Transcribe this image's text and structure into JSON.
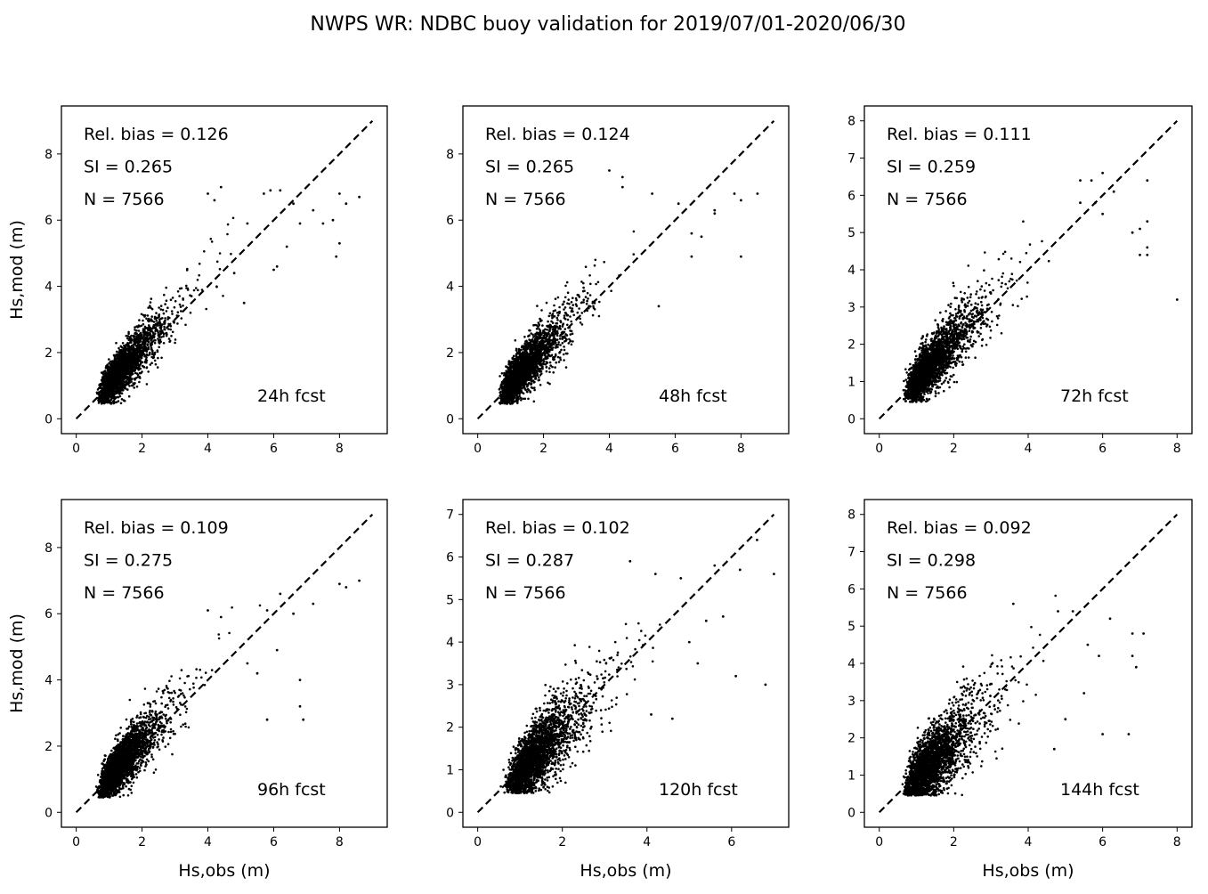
{
  "figure": {
    "title": "NWPS WR: NDBC buoy validation for 2019/07/01-2020/06/30",
    "marker_color": "#000000",
    "line_color": "#000000",
    "background": "#ffffff"
  },
  "chart_data": [
    {
      "type": "scatter",
      "label": "24h fcst",
      "xlabel": "",
      "ylabel": "Hs,mod (m)",
      "xlim": [
        -0.45,
        9.45
      ],
      "ylim": [
        -0.45,
        9.45
      ],
      "xticks": [
        0,
        2,
        4,
        6,
        8
      ],
      "yticks": [
        0,
        2,
        4,
        6,
        8
      ],
      "reference_line": {
        "style": "dashed",
        "from": [
          0,
          0
        ],
        "to": [
          9,
          9
        ]
      },
      "stats": {
        "rel_bias": "Rel. bias =  0.126",
        "si": "SI =  0.265",
        "n": "N = 7566"
      },
      "n_points": 7566,
      "cloud": {
        "x_mode": 1.2,
        "x_max": 4.8,
        "slope": 1.1,
        "spread": 0.28
      },
      "outliers": [
        [
          4.0,
          6.8
        ],
        [
          4.4,
          7.0
        ],
        [
          4.2,
          6.6
        ],
        [
          5.2,
          5.9
        ],
        [
          5.7,
          6.8
        ],
        [
          5.9,
          6.9
        ],
        [
          6.2,
          6.9
        ],
        [
          6.6,
          6.5
        ],
        [
          6.8,
          5.9
        ],
        [
          7.2,
          6.3
        ],
        [
          7.5,
          5.9
        ],
        [
          7.8,
          6.0
        ],
        [
          7.9,
          4.9
        ],
        [
          8.0,
          5.3
        ],
        [
          8.0,
          6.8
        ],
        [
          8.6,
          6.7
        ],
        [
          8.2,
          6.5
        ],
        [
          6.1,
          4.6
        ],
        [
          6.4,
          5.2
        ],
        [
          6.0,
          4.5
        ],
        [
          5.1,
          3.5
        ],
        [
          4.8,
          4.4
        ]
      ]
    },
    {
      "type": "scatter",
      "label": "48h fcst",
      "xlabel": "",
      "ylabel": "",
      "xlim": [
        -0.45,
        9.45
      ],
      "ylim": [
        -0.45,
        9.45
      ],
      "xticks": [
        0,
        2,
        4,
        6,
        8
      ],
      "yticks": [
        0,
        2,
        4,
        6,
        8
      ],
      "reference_line": {
        "style": "dashed",
        "from": [
          0,
          0
        ],
        "to": [
          9,
          9
        ]
      },
      "stats": {
        "rel_bias": "Rel. bias =  0.124",
        "si": "SI =  0.265",
        "n": "N = 7566"
      },
      "n_points": 7566,
      "cloud": {
        "x_mode": 1.2,
        "x_max": 4.8,
        "slope": 1.1,
        "spread": 0.29
      },
      "outliers": [
        [
          4.0,
          7.5
        ],
        [
          4.4,
          7.3
        ],
        [
          4.4,
          7.0
        ],
        [
          5.3,
          6.8
        ],
        [
          6.1,
          6.5
        ],
        [
          6.5,
          5.6
        ],
        [
          7.2,
          6.2
        ],
        [
          7.2,
          6.3
        ],
        [
          7.8,
          6.8
        ],
        [
          8.5,
          6.8
        ],
        [
          8.0,
          6.6
        ],
        [
          8.0,
          4.9
        ],
        [
          6.5,
          4.9
        ],
        [
          5.5,
          3.4
        ],
        [
          6.8,
          5.5
        ]
      ]
    },
    {
      "type": "scatter",
      "label": "72h fcst",
      "xlabel": "",
      "ylabel": "",
      "xlim": [
        -0.4,
        8.4
      ],
      "ylim": [
        -0.4,
        8.4
      ],
      "xticks": [
        0,
        2,
        4,
        6,
        8
      ],
      "yticks": [
        0,
        1,
        2,
        3,
        4,
        5,
        6,
        7,
        8
      ],
      "reference_line": {
        "style": "dashed",
        "from": [
          0,
          0
        ],
        "to": [
          8,
          8
        ]
      },
      "stats": {
        "rel_bias": "Rel. bias =  0.111",
        "si": "SI =  0.259",
        "n": "N = 7566"
      },
      "n_points": 7566,
      "cloud": {
        "x_mode": 1.2,
        "x_max": 4.8,
        "slope": 1.07,
        "spread": 0.3
      },
      "outliers": [
        [
          5.4,
          6.4
        ],
        [
          5.7,
          6.4
        ],
        [
          6.0,
          6.6
        ],
        [
          5.4,
          5.8
        ],
        [
          6.3,
          6.1
        ],
        [
          7.2,
          6.4
        ],
        [
          7.0,
          5.1
        ],
        [
          7.2,
          5.3
        ],
        [
          7.2,
          4.6
        ],
        [
          7.2,
          4.4
        ],
        [
          8.0,
          3.2
        ],
        [
          6.8,
          5.0
        ],
        [
          7.0,
          4.4
        ],
        [
          6.0,
          5.5
        ],
        [
          5.8,
          5.8
        ]
      ]
    },
    {
      "type": "scatter",
      "label": "96h fcst",
      "xlabel": "Hs,obs (m)",
      "ylabel": "Hs,mod (m)",
      "xlim": [
        -0.45,
        9.45
      ],
      "ylim": [
        -0.45,
        9.45
      ],
      "xticks": [
        0,
        2,
        4,
        6,
        8
      ],
      "yticks": [
        0,
        2,
        4,
        6,
        8
      ],
      "reference_line": {
        "style": "dashed",
        "from": [
          0,
          0
        ],
        "to": [
          9,
          9
        ]
      },
      "stats": {
        "rel_bias": "Rel. bias =  0.109",
        "si": "SI =  0.275",
        "n": "N = 7566"
      },
      "n_points": 7566,
      "cloud": {
        "x_mode": 1.2,
        "x_max": 4.8,
        "slope": 1.1,
        "spread": 0.3
      },
      "outliers": [
        [
          4.0,
          6.1
        ],
        [
          4.4,
          5.9
        ],
        [
          5.8,
          6.1
        ],
        [
          6.2,
          6.6
        ],
        [
          6.6,
          6.0
        ],
        [
          7.2,
          6.3
        ],
        [
          8.0,
          6.9
        ],
        [
          8.6,
          7.0
        ],
        [
          8.2,
          6.8
        ],
        [
          6.8,
          4.0
        ],
        [
          6.8,
          3.2
        ],
        [
          6.9,
          2.8
        ],
        [
          5.8,
          2.8
        ],
        [
          5.2,
          4.5
        ],
        [
          5.5,
          4.2
        ],
        [
          6.1,
          4.9
        ]
      ]
    },
    {
      "type": "scatter",
      "label": "120h fcst",
      "xlabel": "Hs,obs (m)",
      "ylabel": "",
      "xlim": [
        -0.35,
        7.35
      ],
      "ylim": [
        -0.35,
        7.35
      ],
      "xticks": [
        0,
        2,
        4,
        6
      ],
      "yticks": [
        0,
        1,
        2,
        3,
        4,
        5,
        6,
        7
      ],
      "reference_line": {
        "style": "dashed",
        "from": [
          0,
          0
        ],
        "to": [
          7,
          7
        ]
      },
      "stats": {
        "rel_bias": "Rel. bias =  0.102",
        "si": "SI =  0.287",
        "n": "N = 7566"
      },
      "n_points": 7566,
      "cloud": {
        "x_mode": 1.2,
        "x_max": 4.6,
        "slope": 1.0,
        "spread": 0.34
      },
      "outliers": [
        [
          3.6,
          5.9
        ],
        [
          4.2,
          5.6
        ],
        [
          4.8,
          5.5
        ],
        [
          5.6,
          5.8
        ],
        [
          6.2,
          5.7
        ],
        [
          6.6,
          6.4
        ],
        [
          7.0,
          5.6
        ],
        [
          6.1,
          3.2
        ],
        [
          6.8,
          3.0
        ],
        [
          5.0,
          4.0
        ],
        [
          5.4,
          4.5
        ],
        [
          5.8,
          4.6
        ],
        [
          4.1,
          2.3
        ],
        [
          4.6,
          2.2
        ],
        [
          5.2,
          3.5
        ]
      ]
    },
    {
      "type": "scatter",
      "label": "144h fcst",
      "xlabel": "Hs,obs (m)",
      "ylabel": "",
      "xlim": [
        -0.4,
        8.4
      ],
      "ylim": [
        -0.4,
        8.4
      ],
      "xticks": [
        0,
        2,
        4,
        6,
        8
      ],
      "yticks": [
        0,
        1,
        2,
        3,
        4,
        5,
        6,
        7,
        8
      ],
      "reference_line": {
        "style": "dashed",
        "from": [
          0,
          0
        ],
        "to": [
          8,
          8
        ]
      },
      "stats": {
        "rel_bias": "Rel. bias =  0.092",
        "si": "SI =  0.298",
        "n": "N = 7566"
      },
      "n_points": 7566,
      "cloud": {
        "x_mode": 1.2,
        "x_max": 4.8,
        "slope": 0.98,
        "spread": 0.38
      },
      "outliers": [
        [
          3.6,
          5.6
        ],
        [
          4.8,
          5.4
        ],
        [
          5.2,
          5.4
        ],
        [
          6.2,
          5.2
        ],
        [
          6.8,
          4.8
        ],
        [
          7.1,
          4.8
        ],
        [
          6.8,
          4.2
        ],
        [
          6.9,
          3.9
        ],
        [
          5.9,
          4.2
        ],
        [
          6.0,
          2.1
        ],
        [
          6.7,
          2.1
        ],
        [
          5.5,
          3.2
        ],
        [
          4.7,
          1.7
        ],
        [
          5.0,
          2.5
        ],
        [
          5.6,
          4.5
        ]
      ]
    }
  ]
}
